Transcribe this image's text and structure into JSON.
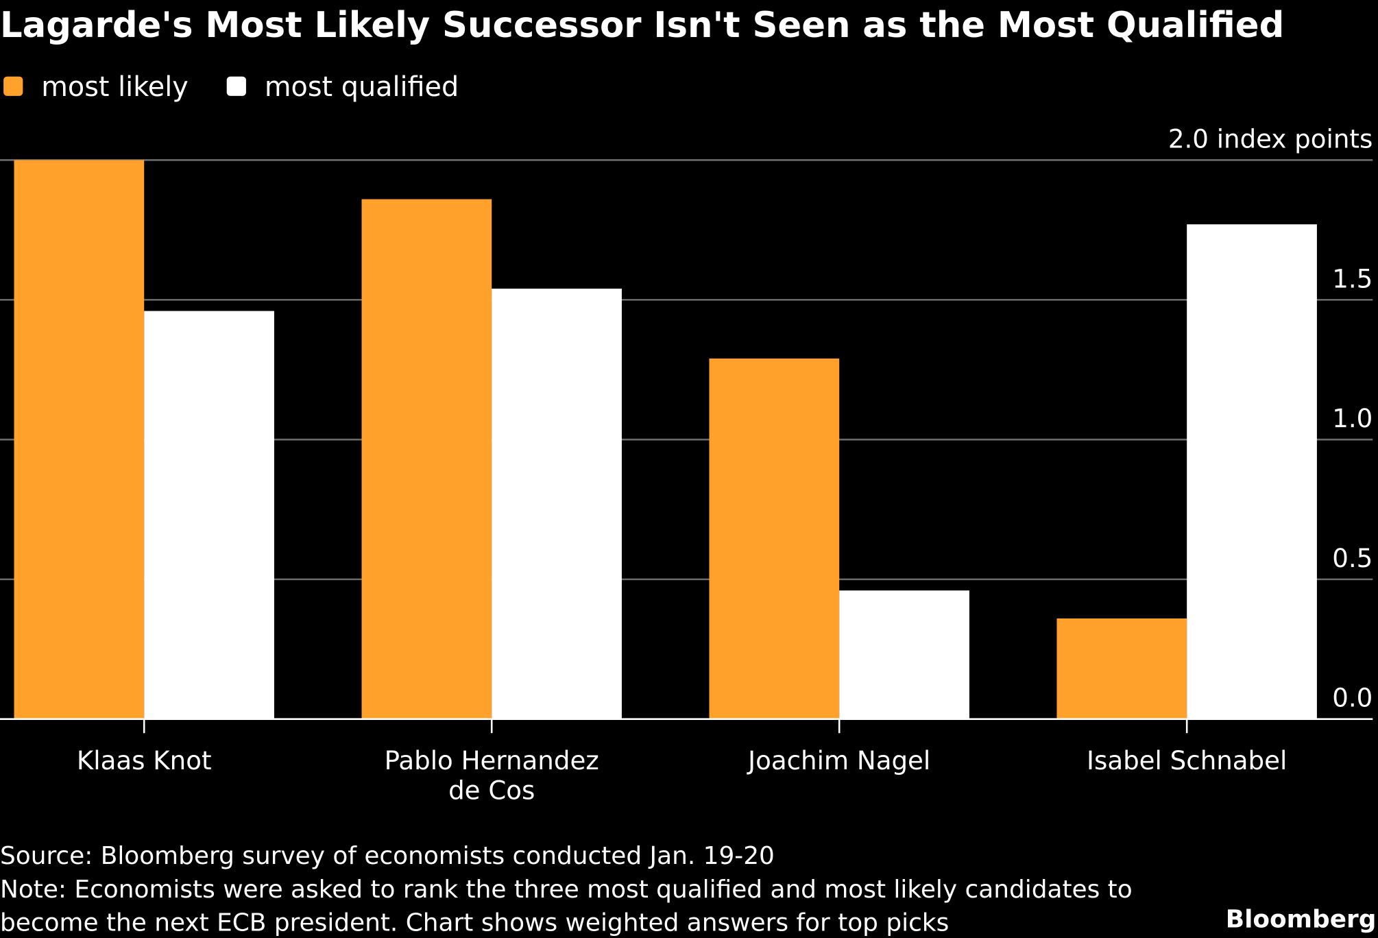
{
  "chart_data": {
    "type": "bar",
    "title": "Lagarde's Most Likely Successor Isn't Seen as the Most Qualified",
    "categories": [
      "Klaas Knot",
      "Pablo Hernandez\nde Cos",
      "Joachim Nagel",
      "Isabel Schnabel"
    ],
    "series": [
      {
        "name": "most likely",
        "color": "#ffa12b",
        "values": [
          2.0,
          1.86,
          1.29,
          0.36
        ]
      },
      {
        "name": "most qualified",
        "color": "#ffffff",
        "values": [
          1.46,
          1.54,
          0.46,
          1.77
        ]
      }
    ],
    "ylim": [
      0,
      2.0
    ],
    "yticks": [
      "0.0",
      "0.5",
      "1.0",
      "1.5",
      "2.0 index points"
    ],
    "ytick_values": [
      0,
      0.5,
      1.0,
      1.5,
      2.0
    ],
    "y_axis_side": "right",
    "grid": true,
    "legend_position": "top-left",
    "source": "Source: Bloomberg survey of economists conducted Jan. 19-20",
    "note_line1": "Note: Economists were asked to rank the three most qualified and most likely candidates to",
    "note_line2": "become the next ECB president. Chart shows weighted answers for top picks",
    "brand": "Bloomberg"
  }
}
